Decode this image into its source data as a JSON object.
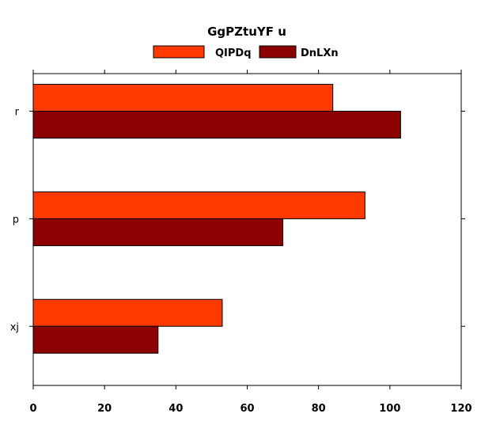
{
  "chart_data": {
    "type": "bar",
    "orientation": "horizontal",
    "title": "GgPZtuYF u",
    "xlabel": "",
    "ylabel": "",
    "categories": [
      "r",
      "p",
      "xj"
    ],
    "series": [
      {
        "name": "QIPDq",
        "color": "#ff3a00",
        "values": [
          84,
          93,
          53
        ]
      },
      {
        "name": "DnLXn",
        "color": "#8b0000",
        "values": [
          103,
          70,
          35
        ]
      }
    ],
    "xlim": [
      0,
      120
    ],
    "xticks": [
      0,
      20,
      40,
      60,
      80,
      100,
      120
    ],
    "grid": false,
    "legend_position": "top"
  }
}
